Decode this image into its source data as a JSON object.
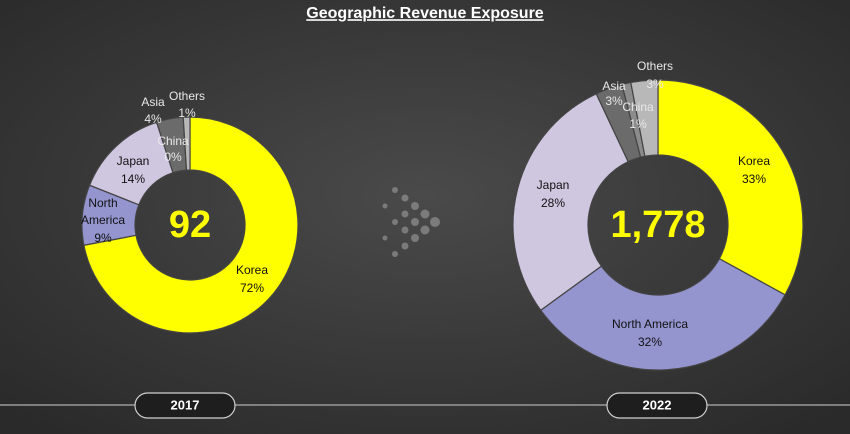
{
  "title": "Geographic Revenue Exposure",
  "chart_data": [
    {
      "type": "pie",
      "donut": true,
      "title": "2017",
      "center_label": "92",
      "categories": [
        "Korea",
        "North America",
        "Japan",
        "Asia",
        "China",
        "Others"
      ],
      "values": [
        72,
        9,
        14,
        4,
        0,
        1
      ],
      "value_labels": [
        "72%",
        "9%",
        "14%",
        "4%",
        "0%",
        "1%"
      ],
      "colors": [
        "#ffff00",
        "#9494cf",
        "#cfc6e0",
        "#6b6b6b",
        "#8c8c8c",
        "#b8b8b8"
      ]
    },
    {
      "type": "pie",
      "donut": true,
      "title": "2022",
      "center_label": "1,778",
      "categories": [
        "Korea",
        "North America",
        "Japan",
        "Asia",
        "China",
        "Others"
      ],
      "values": [
        33,
        32,
        28,
        3,
        1,
        3
      ],
      "value_labels": [
        "33%",
        "32%",
        "28%",
        "3%",
        "1%",
        "3%"
      ],
      "colors": [
        "#ffff00",
        "#9494cf",
        "#cfc6e0",
        "#6b6b6b",
        "#8c8c8c",
        "#b8b8b8"
      ]
    }
  ]
}
